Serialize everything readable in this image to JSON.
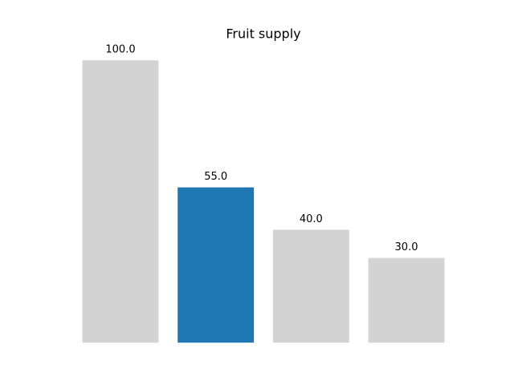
{
  "chart_data": {
    "type": "bar",
    "title": "Fruit supply",
    "values": [
      100,
      55,
      40,
      30
    ],
    "value_labels": [
      "100.0",
      "55.0",
      "40.0",
      "30.0"
    ],
    "colors": [
      "#d3d3d3",
      "#1f77b4",
      "#d3d3d3",
      "#d3d3d3"
    ],
    "ylim": [
      0,
      105
    ]
  }
}
